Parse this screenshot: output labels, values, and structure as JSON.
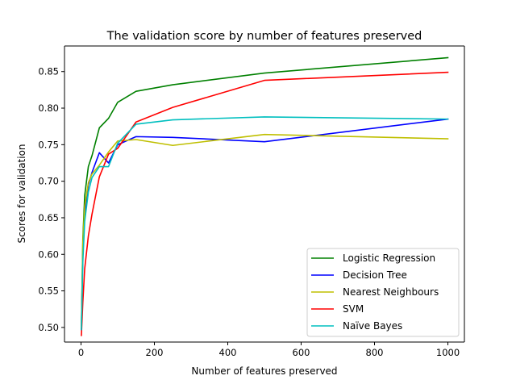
{
  "chart_data": {
    "type": "line",
    "title": "The validation score by number of features preserved",
    "xlabel": "Number of features preserved",
    "ylabel": "Scores for validation",
    "xlim": [
      -45,
      1045
    ],
    "ylim": [
      0.48,
      0.885
    ],
    "xticks": [
      0,
      200,
      400,
      600,
      800,
      1000
    ],
    "yticks": [
      0.5,
      0.55,
      0.6,
      0.65,
      0.7,
      0.75,
      0.8,
      0.85
    ],
    "xtick_labels": [
      "0",
      "200",
      "400",
      "600",
      "800",
      "1000"
    ],
    "ytick_labels": [
      "0.50",
      "0.55",
      "0.60",
      "0.65",
      "0.70",
      "0.75",
      "0.80",
      "0.85"
    ],
    "grid": false,
    "legend_position": "lower-right",
    "x": [
      1,
      5,
      10,
      20,
      30,
      50,
      75,
      100,
      150,
      250,
      500,
      1000
    ],
    "series": [
      {
        "name": "Logistic Regression",
        "color": "#008000",
        "values": [
          0.498,
          0.62,
          0.68,
          0.72,
          0.735,
          0.773,
          0.786,
          0.808,
          0.823,
          0.832,
          0.848,
          0.869
        ]
      },
      {
        "name": "Decision Tree",
        "color": "#0000ff",
        "values": [
          0.497,
          0.6,
          0.655,
          0.695,
          0.712,
          0.739,
          0.725,
          0.75,
          0.761,
          0.76,
          0.754,
          0.785
        ]
      },
      {
        "name": "Nearest Neighbours",
        "color": "#bfbf00",
        "values": [
          0.5,
          0.615,
          0.665,
          0.698,
          0.71,
          0.722,
          0.74,
          0.755,
          0.757,
          0.749,
          0.764,
          0.758
        ]
      },
      {
        "name": "SVM",
        "color": "#ff0000",
        "values": [
          0.489,
          0.535,
          0.58,
          0.625,
          0.655,
          0.706,
          0.737,
          0.745,
          0.781,
          0.801,
          0.838,
          0.849
        ]
      },
      {
        "name": "Naïve Bayes",
        "color": "#00bfbf",
        "values": [
          0.497,
          0.59,
          0.645,
          0.685,
          0.705,
          0.72,
          0.72,
          0.752,
          0.778,
          0.784,
          0.788,
          0.785
        ]
      }
    ]
  }
}
